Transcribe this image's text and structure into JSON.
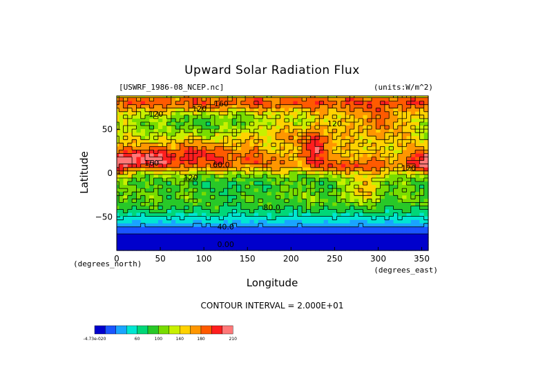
{
  "chart_data": {
    "type": "heatmap",
    "title": "Upward Solar Radiation Flux",
    "source_label": "[USWRF_1986-08_NCEP.nc]",
    "units_label": "(units:W/m^2)",
    "xlabel": "Longitude",
    "ylabel": "Latitude",
    "x_unit_label": "(degrees_east)",
    "y_unit_label": "(degrees_north)",
    "xlim": [
      0,
      357.5
    ],
    "ylim": [
      -88.5,
      88.5
    ],
    "x_ticks": [
      0,
      50,
      100,
      150,
      200,
      250,
      300,
      350
    ],
    "y_ticks": [
      -50,
      0,
      50
    ],
    "contour_interval_text": "CONTOUR INTERVAL = 2.000E+01",
    "contour_labels": [
      {
        "text": "160",
        "lon": 120,
        "lat": 79
      },
      {
        "text": "120",
        "lon": 45,
        "lat": 67
      },
      {
        "text": "120",
        "lon": 95,
        "lat": 73
      },
      {
        "text": "120",
        "lon": 250,
        "lat": 56
      },
      {
        "text": "120",
        "lon": 335,
        "lat": 5
      },
      {
        "text": "160",
        "lon": 40,
        "lat": 11
      },
      {
        "text": "60.0",
        "lon": 120,
        "lat": 9
      },
      {
        "text": "120",
        "lon": 85,
        "lat": -6
      },
      {
        "text": "80.0",
        "lon": 178,
        "lat": -40
      },
      {
        "text": "40.0",
        "lon": 125,
        "lat": -62
      },
      {
        "text": "0.00",
        "lon": 125,
        "lat": -82
      }
    ],
    "colorbar": {
      "colors": [
        "#0000cc",
        "#1a55ff",
        "#1aa5ff",
        "#00e6d2",
        "#00d778",
        "#28c828",
        "#78dc00",
        "#c8f000",
        "#ffd200",
        "#ff9600",
        "#ff5a00",
        "#ff1e1e",
        "#ff7878"
      ],
      "labels": [
        "-4.73e-020",
        "60",
        "100",
        "140",
        "180",
        "210"
      ]
    },
    "zonal_profile": [
      {
        "lat": 88.5,
        "value": 130
      },
      {
        "lat": 83,
        "value": 175
      },
      {
        "lat": 77,
        "value": 160
      },
      {
        "lat": 70,
        "value": 135
      },
      {
        "lat": 62,
        "value": 120
      },
      {
        "lat": 55,
        "value": 115
      },
      {
        "lat": 48,
        "value": 115
      },
      {
        "lat": 40,
        "value": 120
      },
      {
        "lat": 32,
        "value": 125
      },
      {
        "lat": 25,
        "value": 130
      },
      {
        "lat": 18,
        "value": 140
      },
      {
        "lat": 12,
        "value": 150
      },
      {
        "lat": 7,
        "value": 145
      },
      {
        "lat": 2,
        "value": 125
      },
      {
        "lat": -4,
        "value": 105
      },
      {
        "lat": -10,
        "value": 95
      },
      {
        "lat": -16,
        "value": 95
      },
      {
        "lat": -22,
        "value": 100
      },
      {
        "lat": -28,
        "value": 100
      },
      {
        "lat": -34,
        "value": 95
      },
      {
        "lat": -40,
        "value": 85
      },
      {
        "lat": -46,
        "value": 70
      },
      {
        "lat": -52,
        "value": 55
      },
      {
        "lat": -58,
        "value": 45
      },
      {
        "lat": -64,
        "value": 30
      },
      {
        "lat": -70,
        "value": 15
      },
      {
        "lat": -76,
        "value": 5
      },
      {
        "lat": -82,
        "value": 0
      },
      {
        "lat": -88.5,
        "value": 0
      }
    ],
    "features": [
      {
        "lon": 90,
        "lat": 22,
        "dlon": 55,
        "dlat": 10,
        "value": 45
      },
      {
        "lon": 20,
        "lat": 16,
        "dlon": 25,
        "dlat": 8,
        "value": 40
      },
      {
        "lon": 230,
        "lat": 33,
        "dlon": 14,
        "dlat": 14,
        "value": 55
      },
      {
        "lon": 300,
        "lat": 55,
        "dlon": 30,
        "dlat": 14,
        "value": 40
      },
      {
        "lon": 100,
        "lat": 60,
        "dlon": 45,
        "dlat": 8,
        "value": -25
      },
      {
        "lon": 185,
        "lat": 45,
        "dlon": 30,
        "dlat": 8,
        "value": 25
      },
      {
        "lon": 285,
        "lat": -15,
        "dlon": 12,
        "dlat": 12,
        "value": 50
      },
      {
        "lon": 130,
        "lat": -20,
        "dlon": 30,
        "dlat": 12,
        "value": -15
      },
      {
        "lon": 355,
        "lat": 10,
        "dlon": 12,
        "dlat": 10,
        "value": 35
      },
      {
        "lon": 265,
        "lat": 7,
        "dlon": 25,
        "dlat": 5,
        "value": 25
      }
    ]
  }
}
